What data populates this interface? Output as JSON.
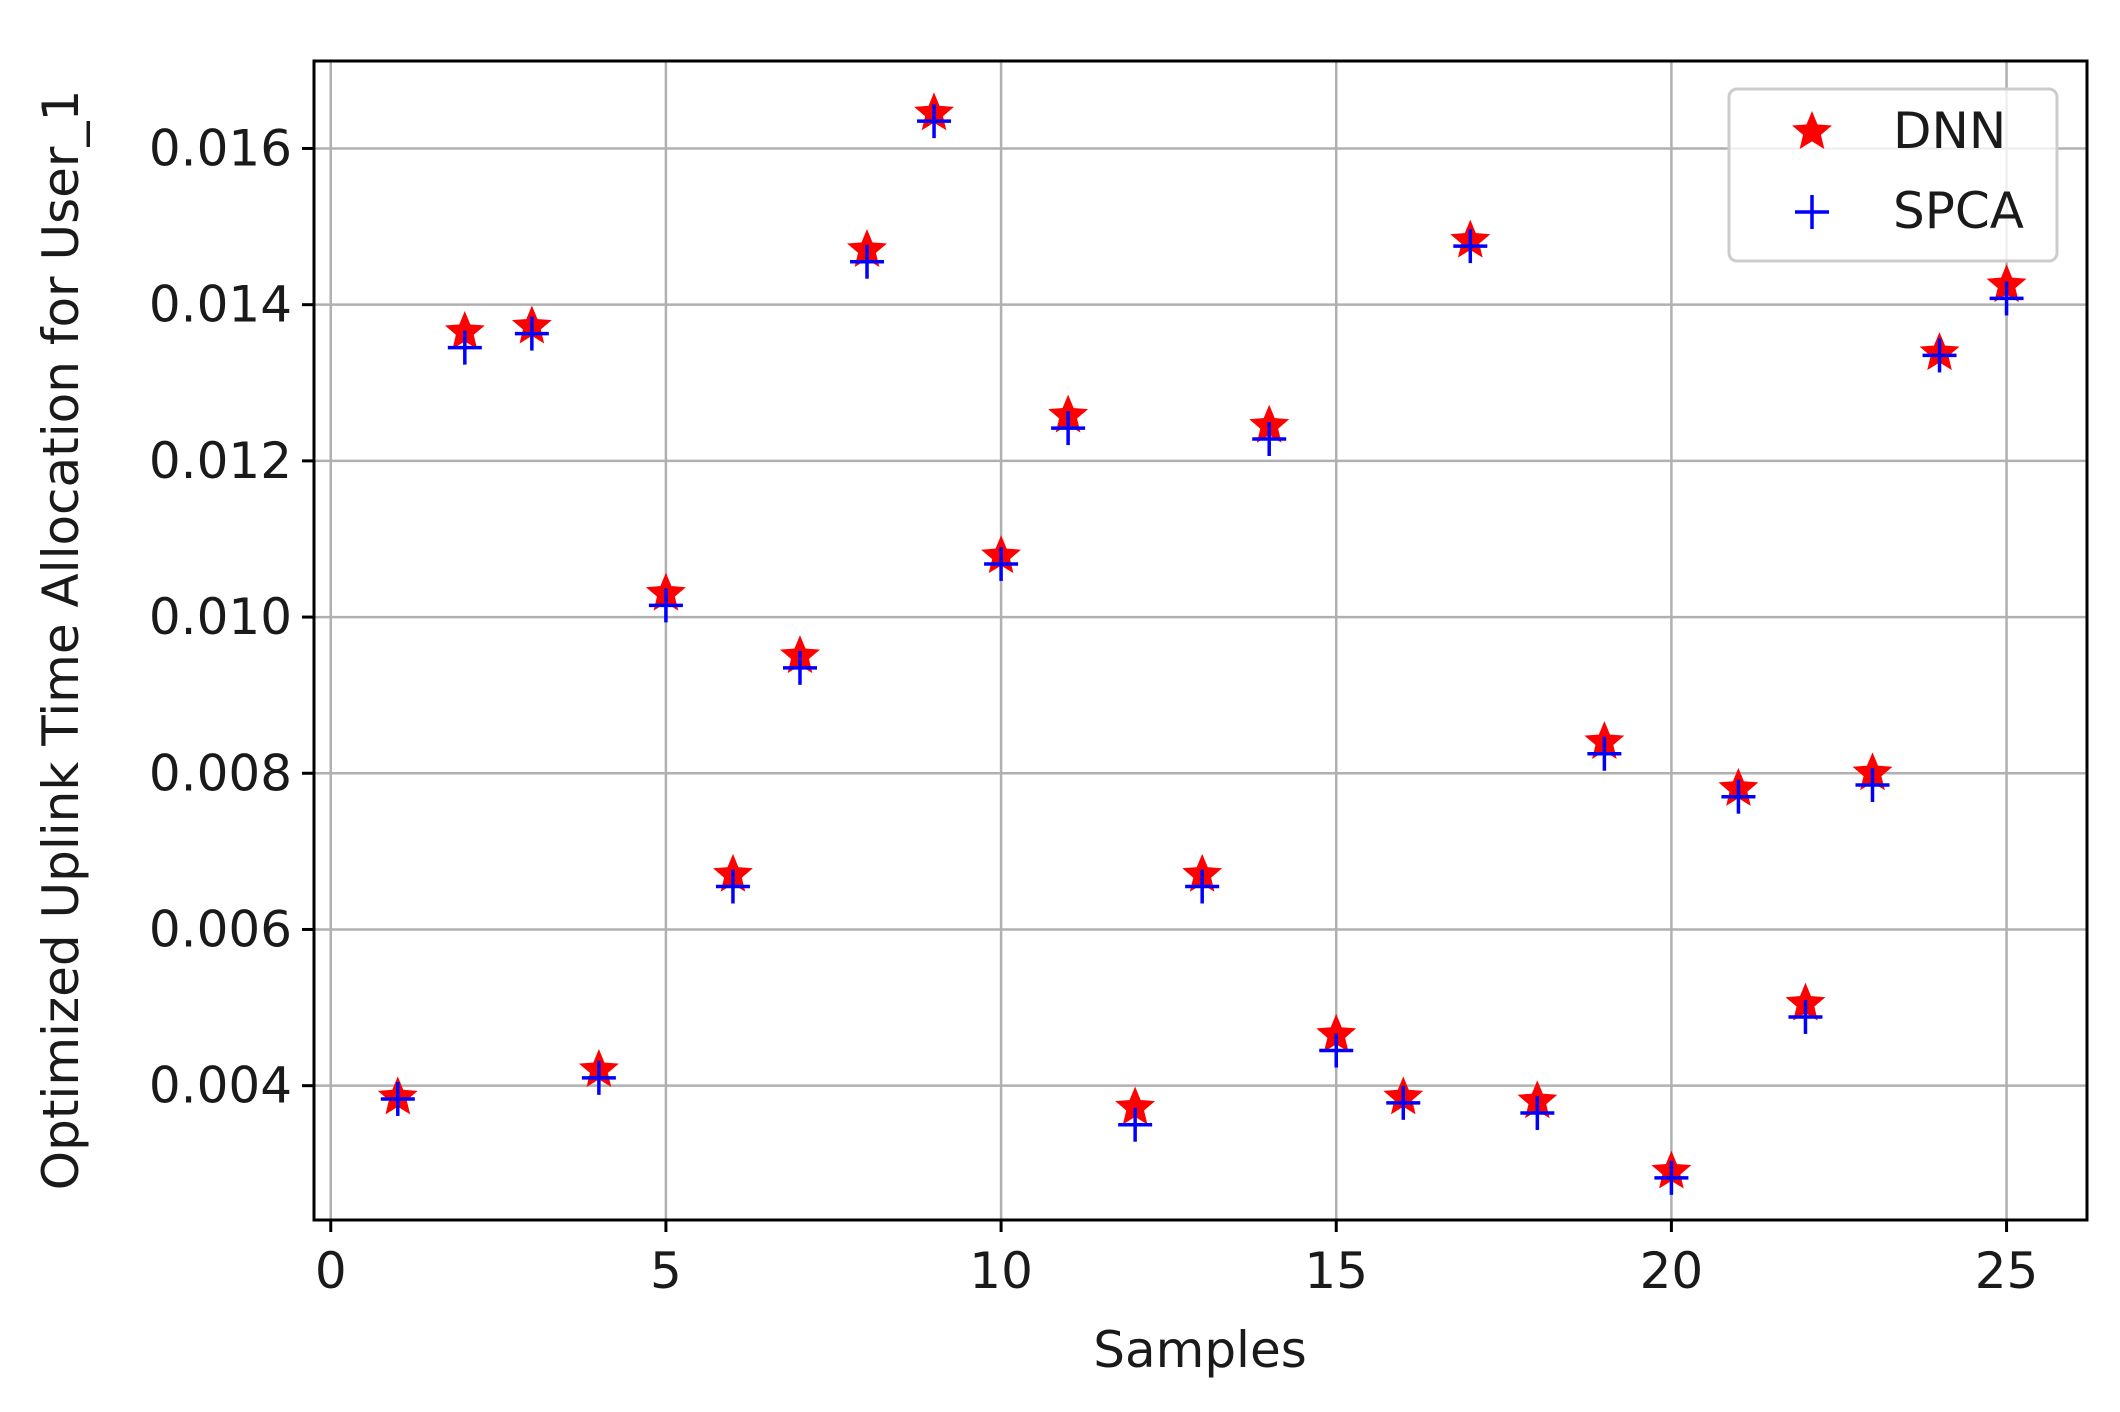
{
  "chart_data": {
    "type": "scatter",
    "title": "",
    "xlabel": "Samples",
    "ylabel": "Optimized Uplink Time Allocation for User_1",
    "xlim": [
      -0.25,
      26.2
    ],
    "ylim": [
      0.00228,
      0.01712
    ],
    "xticks": [
      0,
      5,
      10,
      15,
      20,
      25
    ],
    "xtick_labels": [
      "0",
      "5",
      "10",
      "15",
      "20",
      "25"
    ],
    "yticks": [
      0.004,
      0.006,
      0.008,
      0.01,
      0.012,
      0.014,
      0.016
    ],
    "ytick_labels": [
      "0.004",
      "0.006",
      "0.008",
      "0.010",
      "0.012",
      "0.014",
      "0.016"
    ],
    "grid": true,
    "legend_position": "top-right",
    "x": [
      1,
      2,
      3,
      4,
      5,
      6,
      7,
      8,
      9,
      10,
      11,
      12,
      13,
      14,
      15,
      16,
      17,
      18,
      19,
      20,
      21,
      22,
      23,
      24,
      25
    ],
    "series": [
      {
        "name": "DNN",
        "marker": "star",
        "color": "#ff0000",
        "values": [
          0.00385,
          0.01365,
          0.01372,
          0.0042,
          0.0103,
          0.0067,
          0.0095,
          0.0147,
          0.01645,
          0.01078,
          0.01258,
          0.00372,
          0.0067,
          0.01245,
          0.00465,
          0.00385,
          0.01482,
          0.0038,
          0.0084,
          0.0029,
          0.0078,
          0.00505,
          0.008,
          0.01338,
          0.01425
        ]
      },
      {
        "name": "SPCA",
        "marker": "plus",
        "color": "#0000ff",
        "values": [
          0.00383,
          0.01345,
          0.01363,
          0.0041,
          0.01015,
          0.00655,
          0.00935,
          0.01455,
          0.01635,
          0.01068,
          0.01242,
          0.0035,
          0.00655,
          0.01228,
          0.00445,
          0.00378,
          0.01475,
          0.00365,
          0.00825,
          0.00282,
          0.0077,
          0.00488,
          0.00785,
          0.01335,
          0.01408
        ]
      }
    ]
  }
}
